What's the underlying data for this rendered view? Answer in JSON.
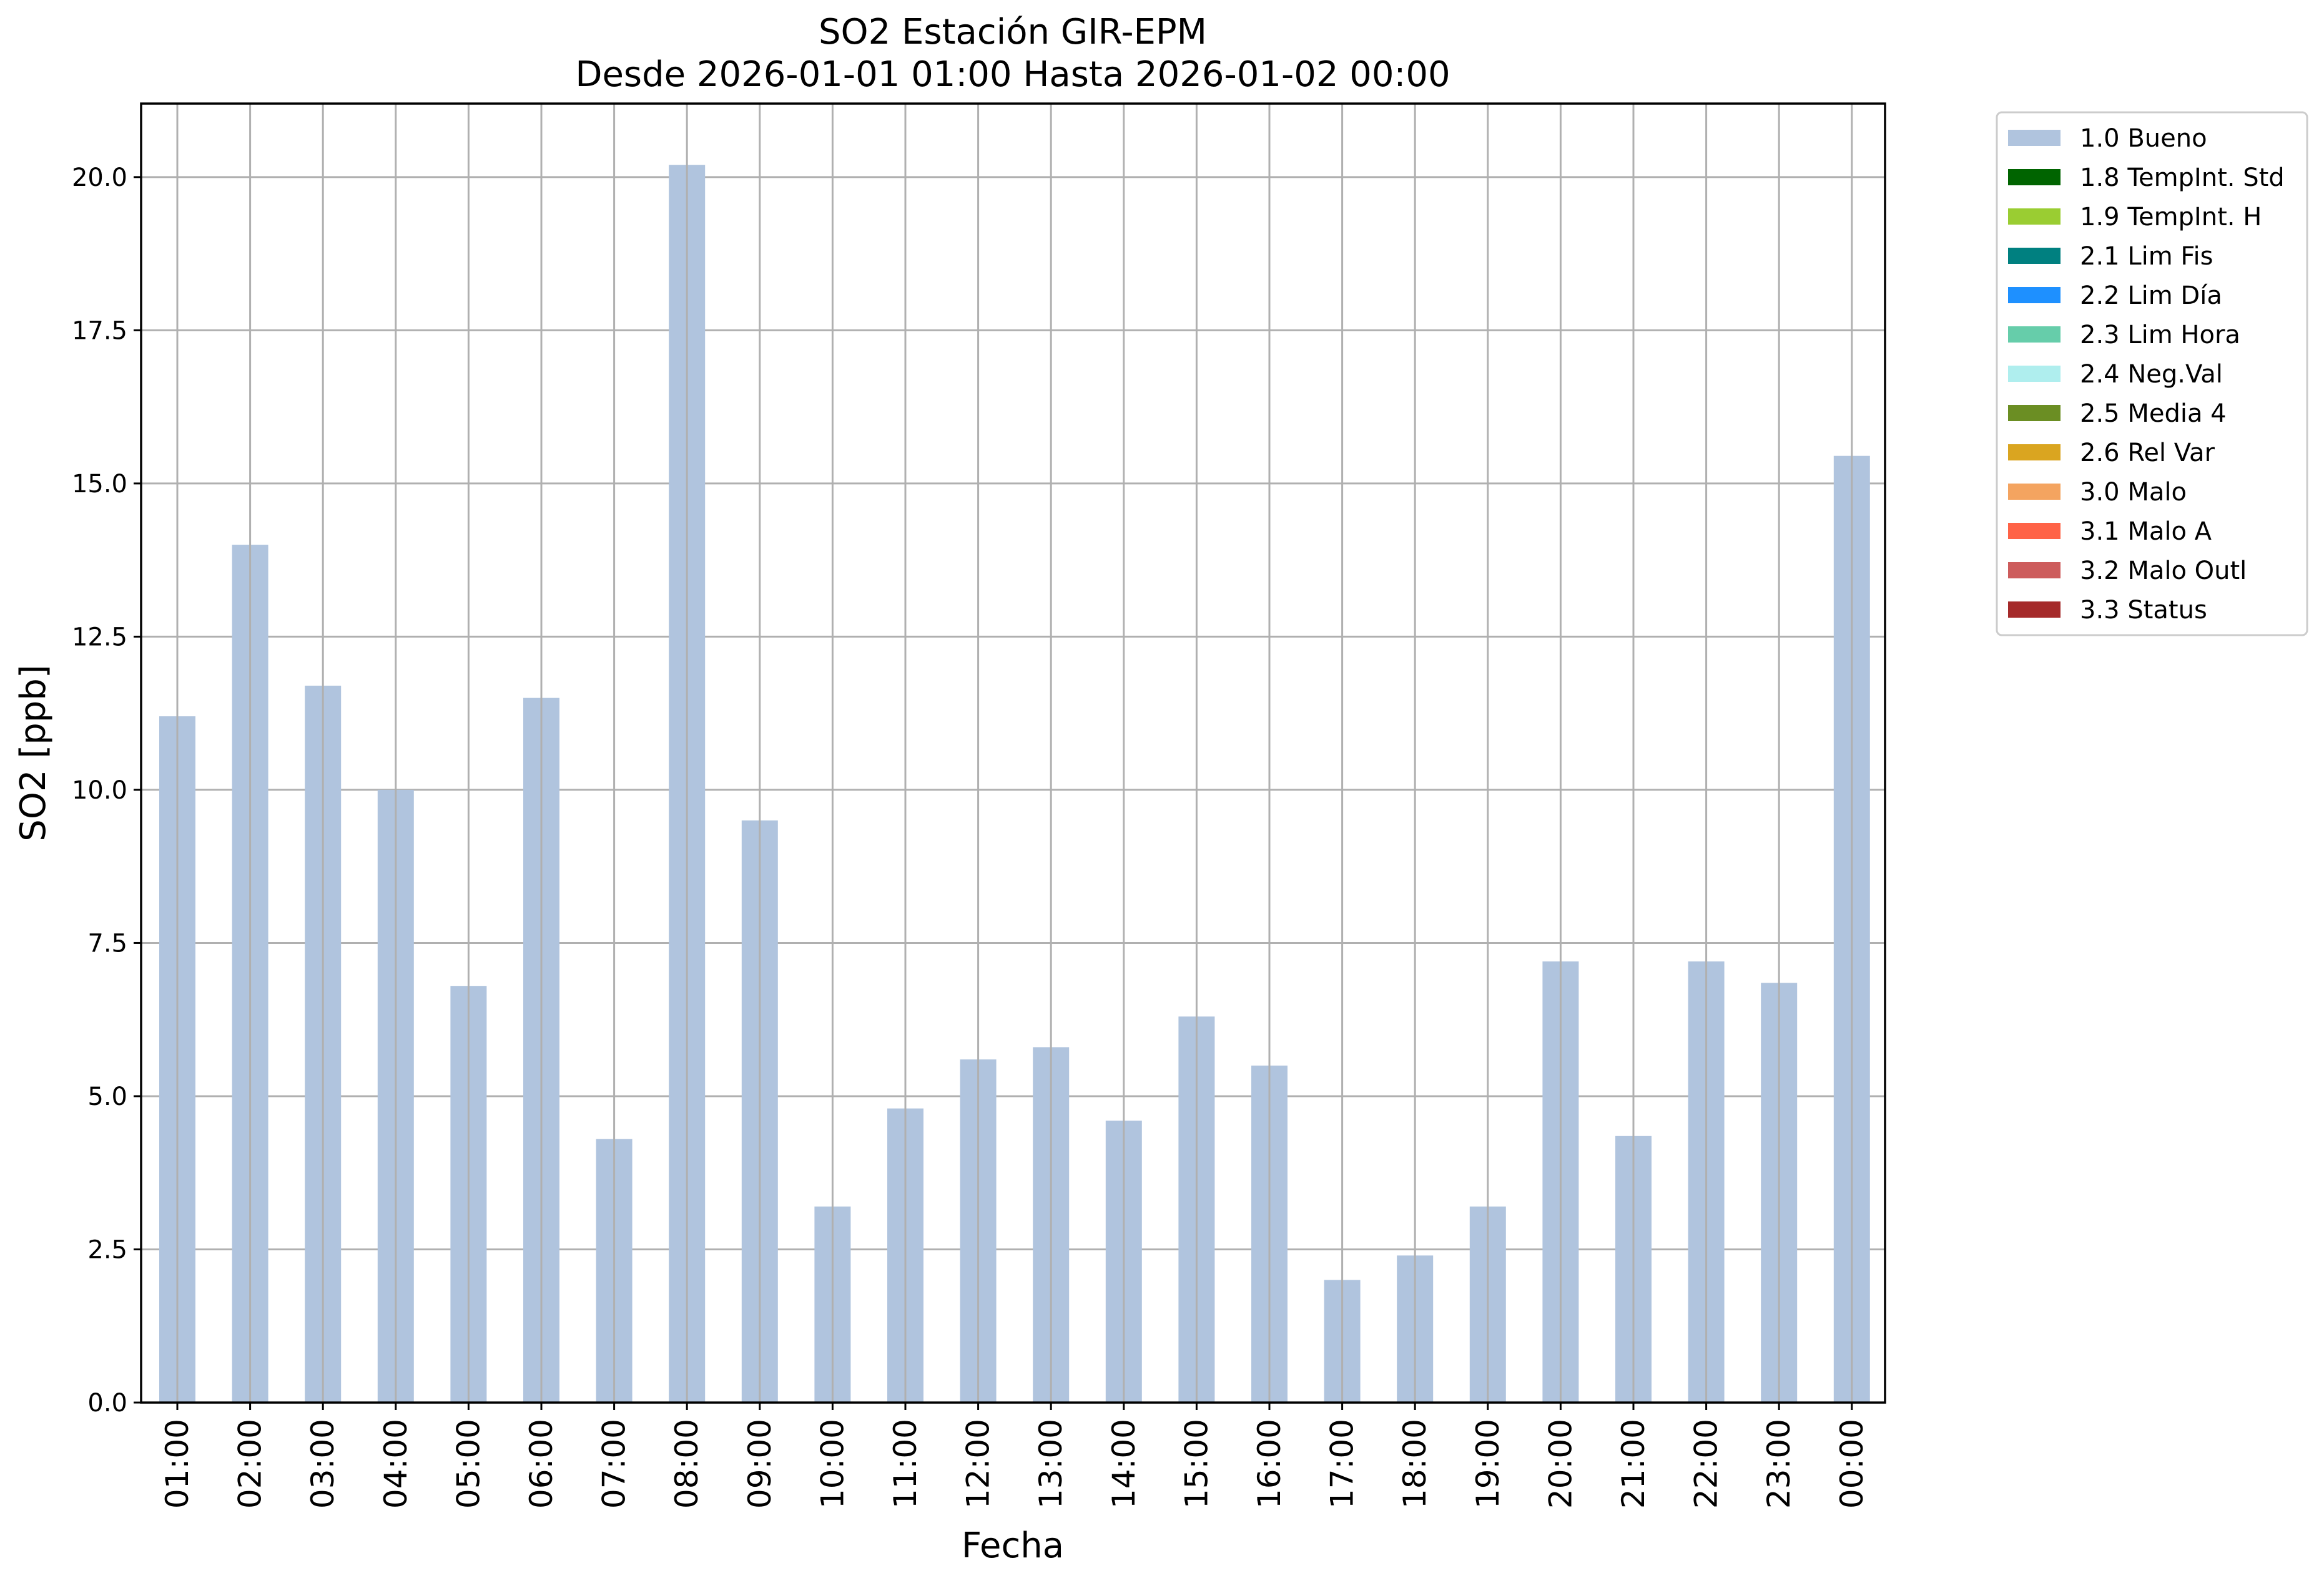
{
  "chart_data": {
    "type": "bar",
    "title": "SO2 Estación GIR-EPM",
    "subtitle": "Desde 2026-01-01 01:00 Hasta 2026-01-02 00:00",
    "xlabel": "Fecha",
    "ylabel": "SO2 [ppb]",
    "ylim": [
      0,
      21.2
    ],
    "yticks": [
      "0.0",
      "2.5",
      "5.0",
      "7.5",
      "10.0",
      "12.5",
      "15.0",
      "17.5",
      "20.0"
    ],
    "grid": true,
    "legend_placement": "outside upper right",
    "categories": [
      "01:00",
      "02:00",
      "03:00",
      "04:00",
      "05:00",
      "06:00",
      "07:00",
      "08:00",
      "09:00",
      "10:00",
      "11:00",
      "12:00",
      "13:00",
      "14:00",
      "15:00",
      "16:00",
      "17:00",
      "18:00",
      "19:00",
      "20:00",
      "21:00",
      "22:00",
      "23:00",
      "00:00"
    ],
    "series": [
      {
        "name": "1.0 Bueno",
        "color": "#b0c4de",
        "values": [
          11.2,
          14.0,
          11.7,
          10.0,
          6.8,
          11.5,
          4.3,
          20.2,
          9.5,
          3.2,
          4.8,
          5.6,
          5.8,
          4.6,
          6.3,
          5.5,
          2.0,
          2.4,
          3.2,
          7.2,
          4.35,
          7.2,
          6.85,
          15.45
        ]
      }
    ],
    "legend": [
      {
        "label": "1.0 Bueno",
        "color": "#b0c4de"
      },
      {
        "label": "1.8 TempInt. Std",
        "color": "#006400"
      },
      {
        "label": "1.9 TempInt. H",
        "color": "#9acd32"
      },
      {
        "label": "2.1 Lim Fis",
        "color": "#008080"
      },
      {
        "label": "2.2 Lim Día",
        "color": "#1e90ff"
      },
      {
        "label": "2.3 Lim Hora",
        "color": "#66cdaa"
      },
      {
        "label": "2.4 Neg.Val",
        "color": "#afeeee"
      },
      {
        "label": "2.5 Media 4",
        "color": "#6b8e23"
      },
      {
        "label": "2.6 Rel Var",
        "color": "#daa520"
      },
      {
        "label": "3.0 Malo",
        "color": "#f4a460"
      },
      {
        "label": "3.1 Malo A",
        "color": "#ff6347"
      },
      {
        "label": "3.2 Malo Outl",
        "color": "#cd5c5c"
      },
      {
        "label": "3.3 Status",
        "color": "#a52a2a"
      }
    ]
  }
}
